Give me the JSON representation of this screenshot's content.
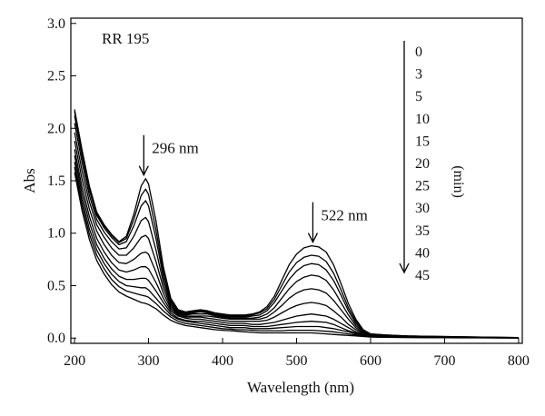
{
  "chart_data": {
    "type": "line",
    "title": "",
    "sample_label": "RR 195",
    "xlabel": "Wavelength (nm)",
    "ylabel": "Abs",
    "xlim": [
      195,
      805
    ],
    "ylim": [
      -0.05,
      3.05
    ],
    "xticks": [
      200,
      300,
      400,
      500,
      600,
      700,
      800
    ],
    "yticks": [
      0.0,
      0.5,
      1.0,
      1.5,
      2.0,
      2.5,
      3.0
    ],
    "ytick_labels": [
      "0.0",
      "0.5",
      "1.0",
      "1.5",
      "2.0",
      "2.5",
      "3.0"
    ],
    "grid": false,
    "legend": {
      "placement": "top-right",
      "unit_label": "(min)",
      "times": [
        "0",
        "3",
        "5",
        "10",
        "15",
        "20",
        "25",
        "30",
        "35",
        "40",
        "45"
      ]
    },
    "annotations": [
      {
        "text": "296 nm",
        "x": 296,
        "y": 1.52
      },
      {
        "text": "522 nm",
        "x": 522,
        "y": 0.88
      }
    ],
    "x": [
      200,
      210,
      220,
      230,
      240,
      250,
      260,
      270,
      280,
      290,
      296,
      300,
      310,
      320,
      330,
      340,
      350,
      360,
      370,
      380,
      390,
      400,
      410,
      420,
      430,
      440,
      450,
      460,
      470,
      480,
      490,
      500,
      510,
      520,
      530,
      540,
      550,
      560,
      570,
      580,
      590,
      600,
      620,
      650,
      700,
      750,
      800
    ],
    "series": [
      {
        "values": [
          2.18,
          1.8,
          1.45,
          1.2,
          1.08,
          0.99,
          0.92,
          0.97,
          1.18,
          1.45,
          1.52,
          1.47,
          1.12,
          0.68,
          0.38,
          0.27,
          0.25,
          0.26,
          0.27,
          0.26,
          0.24,
          0.23,
          0.22,
          0.22,
          0.22,
          0.23,
          0.25,
          0.3,
          0.4,
          0.55,
          0.7,
          0.8,
          0.86,
          0.88,
          0.87,
          0.82,
          0.7,
          0.52,
          0.33,
          0.18,
          0.08,
          0.04,
          0.03,
          0.02,
          0.015,
          0.01,
          0.005
        ]
      },
      {
        "values": [
          2.16,
          1.78,
          1.44,
          1.19,
          1.07,
          0.98,
          0.91,
          0.95,
          1.13,
          1.36,
          1.42,
          1.37,
          1.03,
          0.63,
          0.36,
          0.26,
          0.24,
          0.25,
          0.26,
          0.25,
          0.23,
          0.22,
          0.21,
          0.21,
          0.21,
          0.22,
          0.24,
          0.28,
          0.37,
          0.5,
          0.63,
          0.72,
          0.77,
          0.79,
          0.78,
          0.73,
          0.62,
          0.46,
          0.29,
          0.16,
          0.07,
          0.04,
          0.03,
          0.02,
          0.015,
          0.01,
          0.005
        ]
      },
      {
        "values": [
          2.12,
          1.74,
          1.41,
          1.17,
          1.05,
          0.96,
          0.89,
          0.92,
          1.07,
          1.26,
          1.31,
          1.26,
          0.95,
          0.58,
          0.34,
          0.25,
          0.23,
          0.24,
          0.25,
          0.24,
          0.22,
          0.21,
          0.2,
          0.2,
          0.2,
          0.21,
          0.22,
          0.26,
          0.34,
          0.45,
          0.56,
          0.64,
          0.69,
          0.71,
          0.7,
          0.65,
          0.55,
          0.41,
          0.26,
          0.14,
          0.07,
          0.035,
          0.025,
          0.02,
          0.012,
          0.008,
          0.004
        ]
      },
      {
        "values": [
          2.05,
          1.68,
          1.36,
          1.13,
          1.01,
          0.92,
          0.85,
          0.86,
          0.97,
          1.12,
          1.15,
          1.11,
          0.84,
          0.53,
          0.32,
          0.24,
          0.22,
          0.23,
          0.23,
          0.23,
          0.21,
          0.2,
          0.19,
          0.19,
          0.19,
          0.19,
          0.2,
          0.23,
          0.29,
          0.38,
          0.47,
          0.54,
          0.58,
          0.6,
          0.59,
          0.55,
          0.46,
          0.34,
          0.22,
          0.12,
          0.06,
          0.03,
          0.02,
          0.015,
          0.01,
          0.007,
          0.003
        ]
      },
      {
        "values": [
          1.96,
          1.6,
          1.3,
          1.08,
          0.96,
          0.86,
          0.79,
          0.79,
          0.86,
          0.96,
          0.98,
          0.95,
          0.73,
          0.48,
          0.3,
          0.23,
          0.21,
          0.21,
          0.21,
          0.21,
          0.2,
          0.19,
          0.18,
          0.18,
          0.18,
          0.18,
          0.18,
          0.2,
          0.25,
          0.31,
          0.38,
          0.43,
          0.46,
          0.47,
          0.46,
          0.43,
          0.36,
          0.27,
          0.18,
          0.1,
          0.05,
          0.03,
          0.02,
          0.015,
          0.01,
          0.006,
          0.003
        ]
      },
      {
        "values": [
          1.88,
          1.52,
          1.23,
          1.02,
          0.89,
          0.79,
          0.72,
          0.71,
          0.75,
          0.81,
          0.82,
          0.8,
          0.63,
          0.43,
          0.28,
          0.22,
          0.2,
          0.2,
          0.2,
          0.19,
          0.18,
          0.17,
          0.16,
          0.16,
          0.16,
          0.16,
          0.16,
          0.17,
          0.2,
          0.24,
          0.28,
          0.31,
          0.33,
          0.34,
          0.33,
          0.31,
          0.26,
          0.2,
          0.13,
          0.08,
          0.04,
          0.025,
          0.02,
          0.012,
          0.008,
          0.005,
          0.002
        ]
      },
      {
        "values": [
          1.8,
          1.44,
          1.16,
          0.95,
          0.82,
          0.72,
          0.65,
          0.63,
          0.65,
          0.68,
          0.68,
          0.66,
          0.53,
          0.38,
          0.26,
          0.21,
          0.19,
          0.18,
          0.18,
          0.17,
          0.16,
          0.15,
          0.14,
          0.14,
          0.14,
          0.13,
          0.13,
          0.14,
          0.15,
          0.17,
          0.19,
          0.21,
          0.22,
          0.23,
          0.22,
          0.21,
          0.18,
          0.14,
          0.1,
          0.06,
          0.035,
          0.02,
          0.015,
          0.01,
          0.007,
          0.004,
          0.002
        ]
      },
      {
        "values": [
          1.74,
          1.38,
          1.1,
          0.89,
          0.76,
          0.66,
          0.59,
          0.56,
          0.56,
          0.57,
          0.57,
          0.55,
          0.45,
          0.34,
          0.24,
          0.19,
          0.17,
          0.16,
          0.16,
          0.15,
          0.14,
          0.13,
          0.12,
          0.12,
          0.12,
          0.11,
          0.11,
          0.11,
          0.12,
          0.13,
          0.14,
          0.15,
          0.155,
          0.16,
          0.155,
          0.15,
          0.13,
          0.1,
          0.07,
          0.05,
          0.03,
          0.02,
          0.012,
          0.008,
          0.006,
          0.004,
          0.002
        ]
      },
      {
        "values": [
          1.68,
          1.32,
          1.04,
          0.84,
          0.71,
          0.61,
          0.54,
          0.5,
          0.49,
          0.48,
          0.48,
          0.46,
          0.38,
          0.3,
          0.22,
          0.18,
          0.16,
          0.15,
          0.14,
          0.13,
          0.12,
          0.11,
          0.1,
          0.1,
          0.1,
          0.09,
          0.09,
          0.09,
          0.095,
          0.1,
          0.105,
          0.11,
          0.11,
          0.11,
          0.11,
          0.1,
          0.09,
          0.075,
          0.06,
          0.04,
          0.025,
          0.015,
          0.01,
          0.007,
          0.005,
          0.003,
          0.002
        ]
      },
      {
        "values": [
          1.63,
          1.27,
          0.99,
          0.79,
          0.66,
          0.56,
          0.49,
          0.45,
          0.43,
          0.41,
          0.4,
          0.39,
          0.33,
          0.26,
          0.2,
          0.16,
          0.14,
          0.13,
          0.12,
          0.11,
          0.1,
          0.09,
          0.085,
          0.08,
          0.08,
          0.075,
          0.07,
          0.07,
          0.07,
          0.07,
          0.075,
          0.075,
          0.075,
          0.075,
          0.07,
          0.065,
          0.06,
          0.05,
          0.04,
          0.03,
          0.02,
          0.012,
          0.008,
          0.006,
          0.004,
          0.003,
          0.001
        ]
      },
      {
        "values": [
          1.58,
          1.22,
          0.94,
          0.74,
          0.61,
          0.51,
          0.44,
          0.4,
          0.37,
          0.34,
          0.33,
          0.32,
          0.28,
          0.22,
          0.17,
          0.14,
          0.12,
          0.11,
          0.1,
          0.09,
          0.08,
          0.075,
          0.07,
          0.065,
          0.06,
          0.055,
          0.05,
          0.05,
          0.05,
          0.05,
          0.05,
          0.05,
          0.05,
          0.05,
          0.045,
          0.04,
          0.035,
          0.03,
          0.025,
          0.02,
          0.015,
          0.01,
          0.007,
          0.005,
          0.003,
          0.002,
          0.001
        ]
      }
    ]
  }
}
